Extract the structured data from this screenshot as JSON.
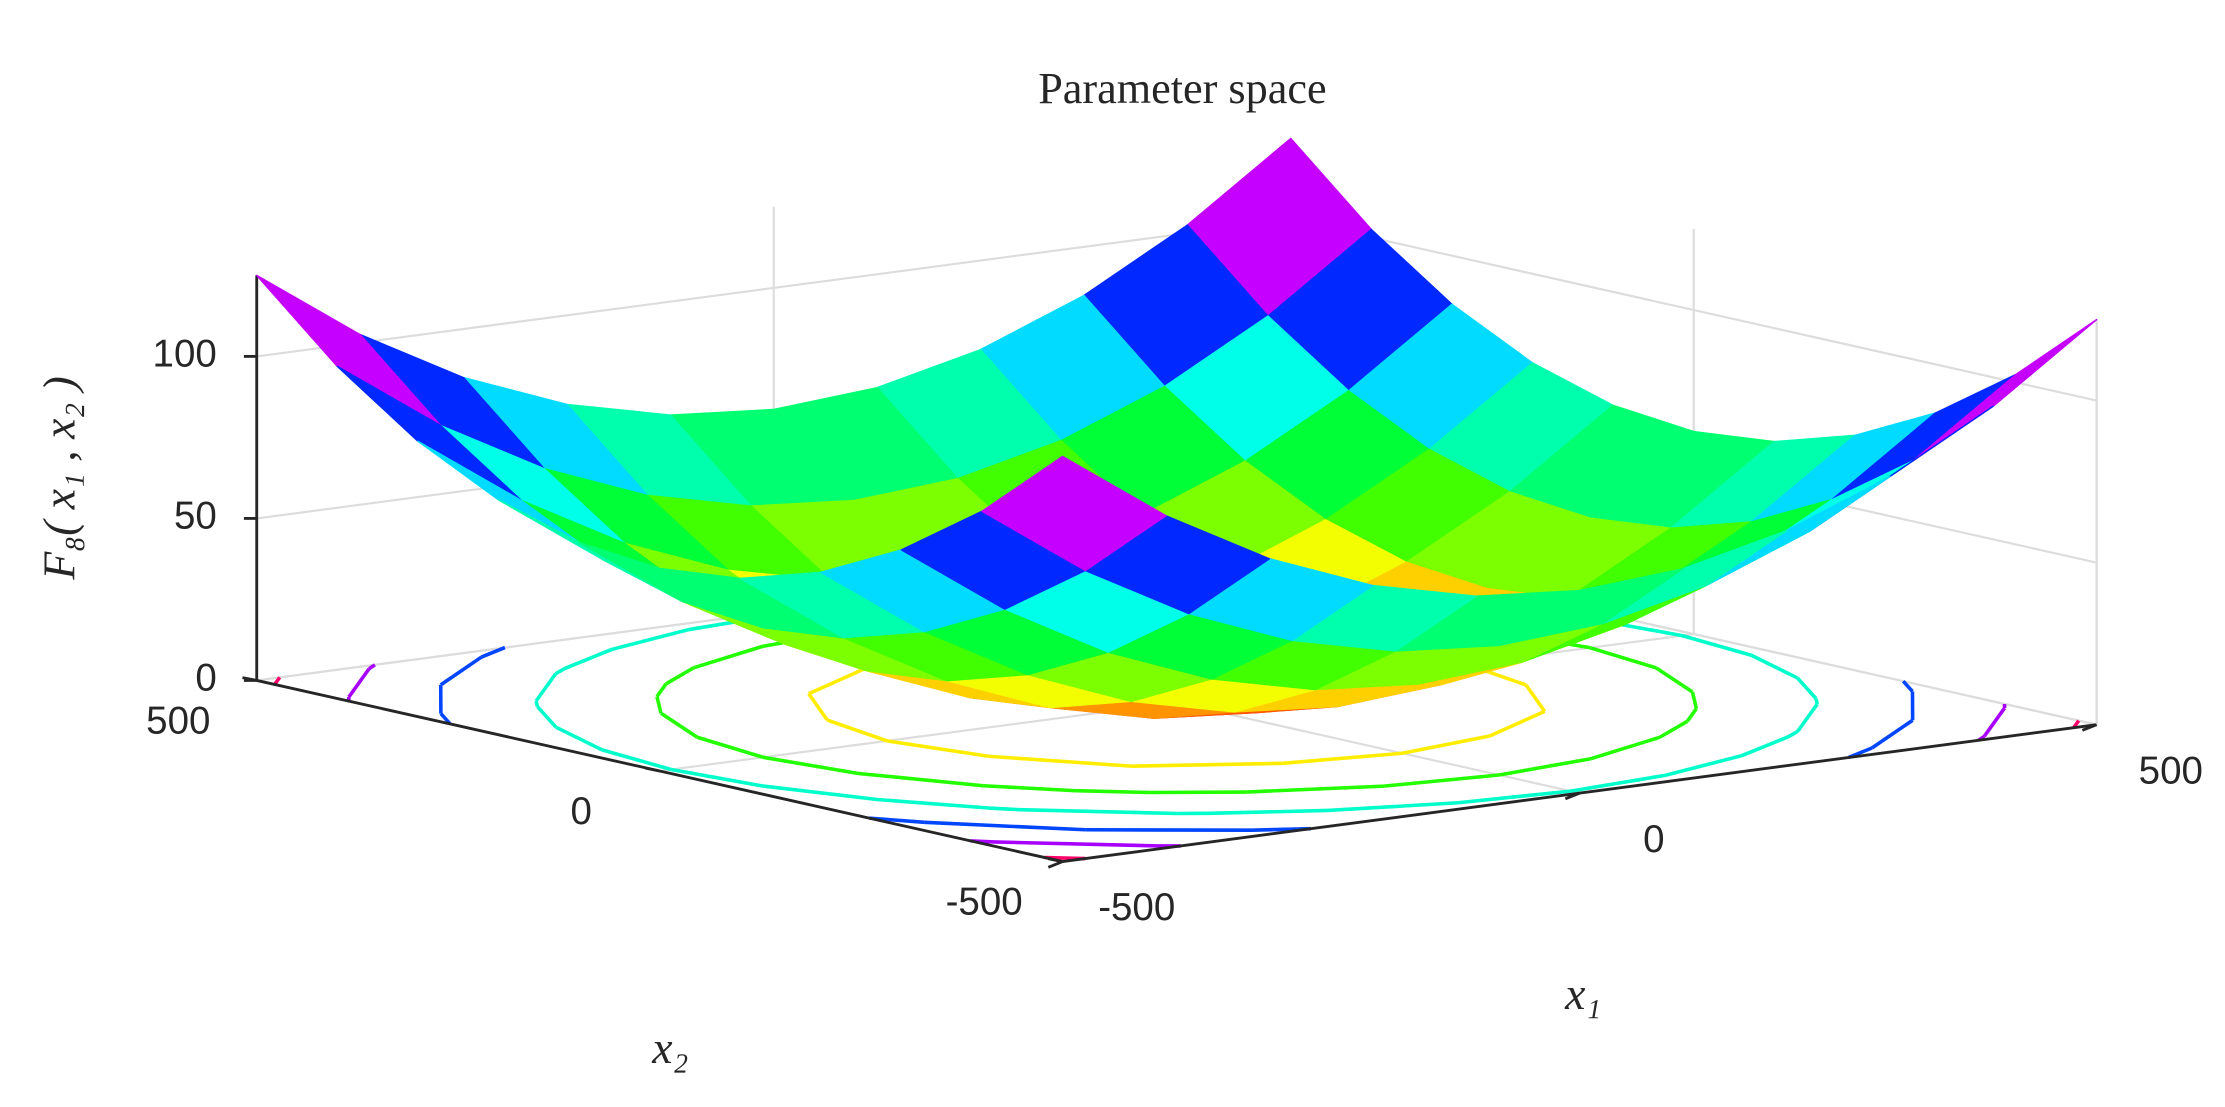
{
  "chart_data": {
    "type": "surface",
    "title": "Parameter space",
    "xlabel": "x₁",
    "ylabel": "x₂",
    "zlabel": "F₈( x₁ , x₂ )",
    "x": [
      -500,
      -400,
      -300,
      -200,
      -100,
      0,
      100,
      200,
      300,
      400,
      500
    ],
    "y": [
      -500,
      -400,
      -300,
      -200,
      -100,
      0,
      100,
      200,
      300,
      400,
      500
    ],
    "z": [
      [
        125,
        102.5,
        85,
        72.5,
        65,
        62.5,
        65,
        72.5,
        85,
        102.5,
        125
      ],
      [
        102.5,
        80,
        62.5,
        50,
        42.5,
        40,
        42.5,
        50,
        62.5,
        80,
        102.5
      ],
      [
        85,
        62.5,
        45,
        32.5,
        25,
        22.5,
        25,
        32.5,
        45,
        62.5,
        85
      ],
      [
        72.5,
        50,
        32.5,
        20,
        12.5,
        10,
        12.5,
        20,
        32.5,
        50,
        72.5
      ],
      [
        65,
        42.5,
        25,
        12.5,
        5,
        2.5,
        5,
        12.5,
        25,
        42.5,
        65
      ],
      [
        62.5,
        40,
        22.5,
        10,
        2.5,
        0,
        2.5,
        10,
        22.5,
        40,
        62.5
      ],
      [
        65,
        42.5,
        25,
        12.5,
        5,
        2.5,
        5,
        12.5,
        25,
        42.5,
        65
      ],
      [
        72.5,
        50,
        32.5,
        20,
        12.5,
        10,
        12.5,
        20,
        32.5,
        50,
        72.5
      ],
      [
        85,
        62.5,
        45,
        32.5,
        25,
        22.5,
        25,
        32.5,
        45,
        62.5,
        85
      ],
      [
        102.5,
        80,
        62.5,
        50,
        42.5,
        40,
        42.5,
        50,
        62.5,
        80,
        102.5
      ],
      [
        125,
        102.5,
        85,
        72.5,
        65,
        62.5,
        65,
        72.5,
        85,
        102.5,
        125
      ]
    ],
    "contour_levels": [
      20,
      40,
      60,
      80,
      100,
      120
    ],
    "colormap": "hsv",
    "xlim": [
      -500,
      500
    ],
    "ylim": [
      -500,
      500
    ],
    "zlim": [
      0,
      125
    ],
    "xticks": [
      -500,
      0,
      500
    ],
    "yticks": [
      -500,
      0,
      500
    ],
    "zticks": [
      0,
      50,
      100
    ],
    "grid": true
  }
}
